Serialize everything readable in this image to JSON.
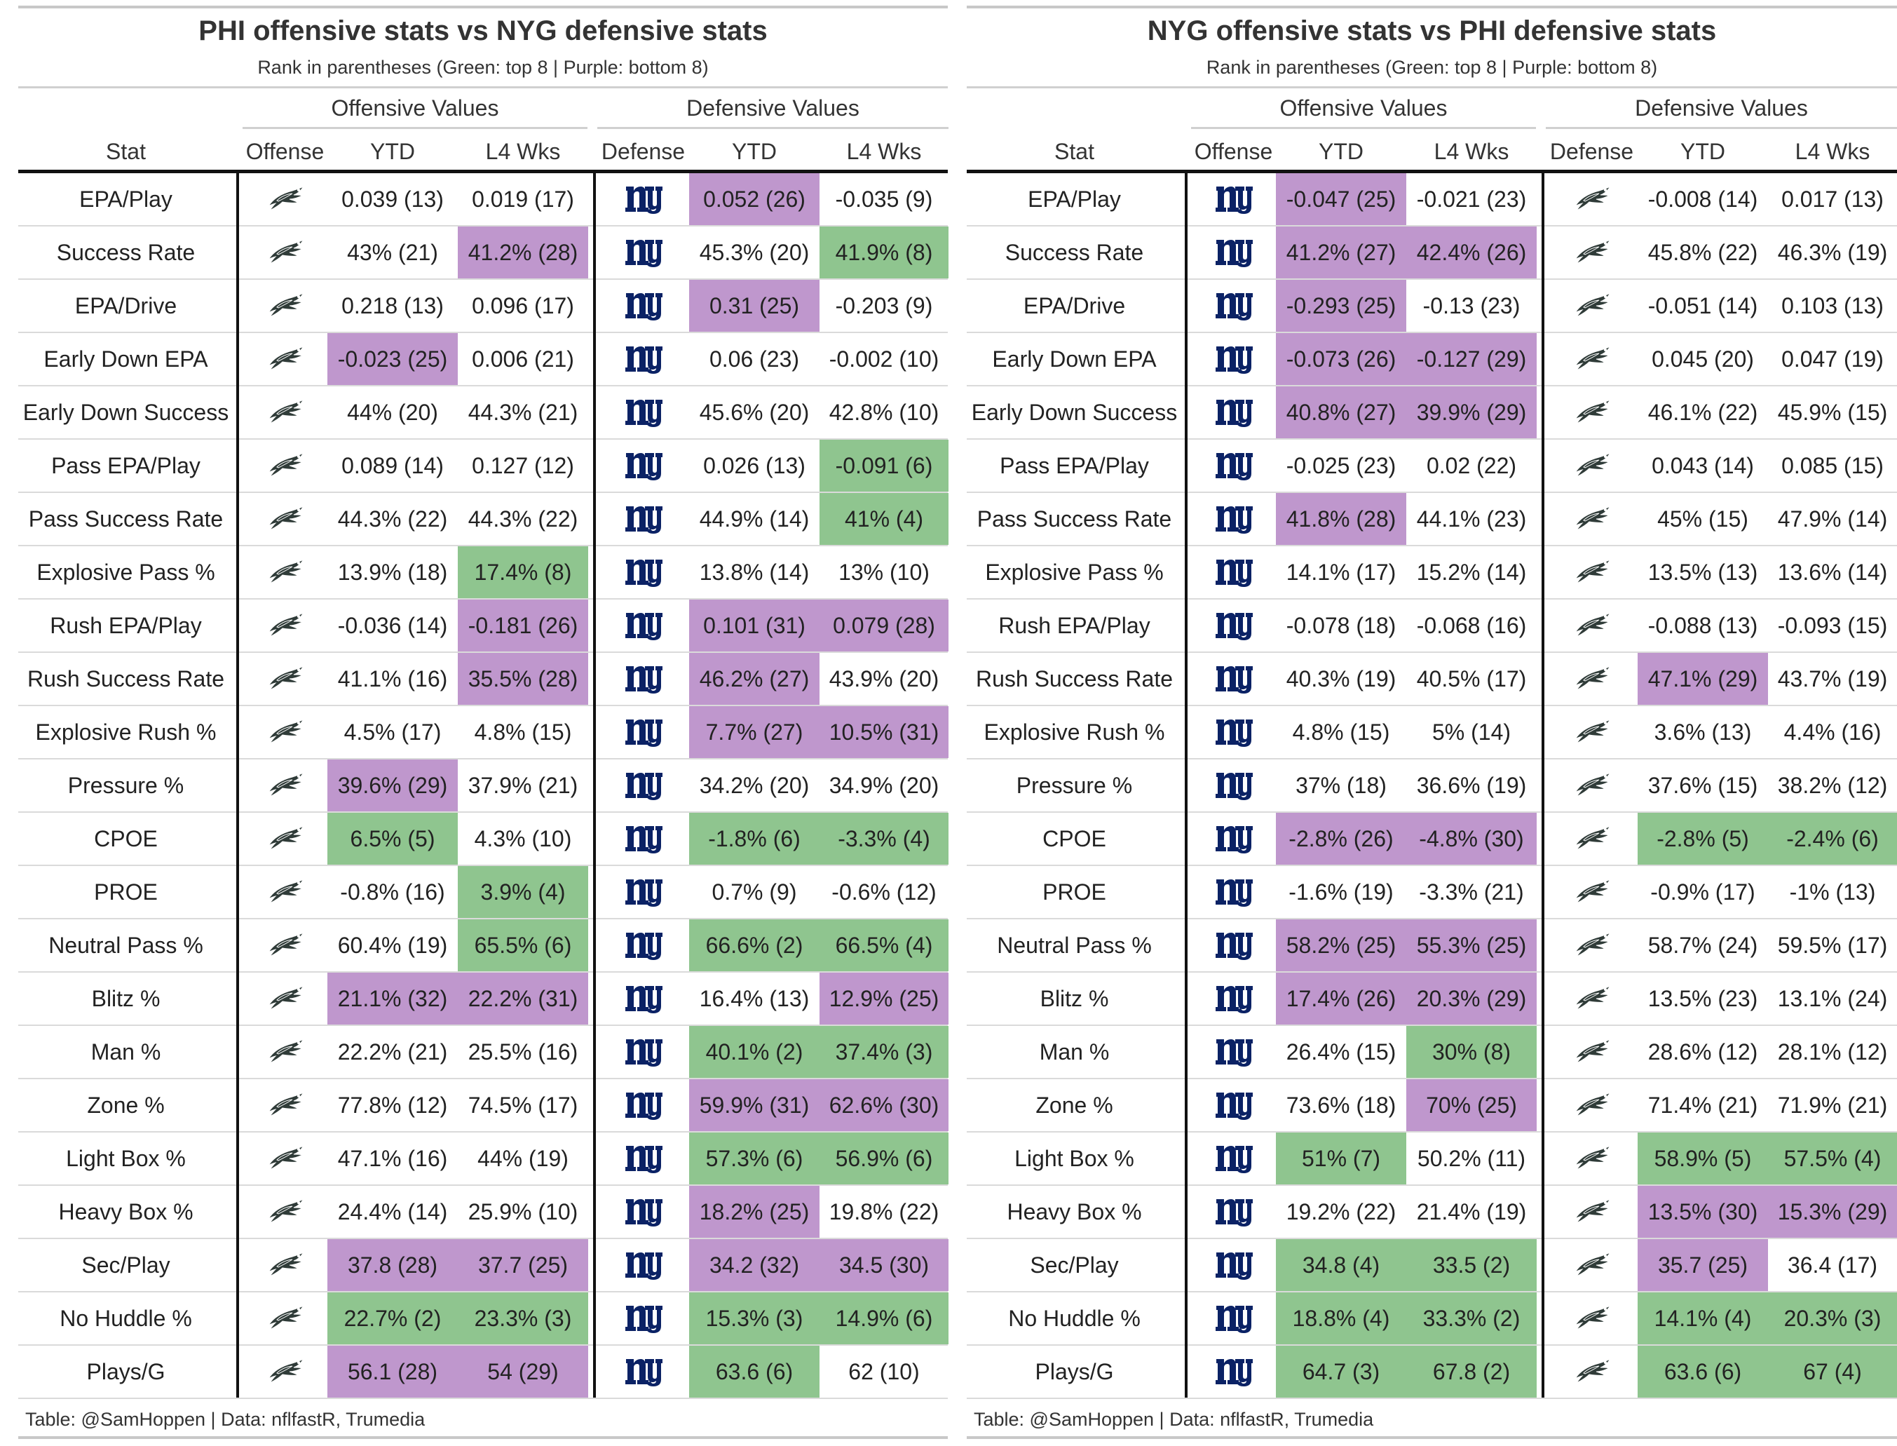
{
  "colors": {
    "green": "#8fc58f",
    "purple": "#bf97cd",
    "giants_blue": "#0b2265",
    "eagles": "#2f3b38"
  },
  "icons": {
    "phi": "eagles-logo-icon",
    "nyg": "giants-ny-logo-icon"
  },
  "chart_data": [
    {
      "type": "table",
      "title": "PHI offensive stats vs NYG defensive stats",
      "subtitle": "Rank in parentheses (Green: top 8 | Purple: bottom 8)",
      "spanners": [
        "Offensive Values",
        "Defensive Values"
      ],
      "columns": [
        "Stat",
        "Offense",
        "YTD",
        "L4 Wks",
        "Defense",
        "YTD",
        "L4 Wks"
      ],
      "offense_team": "phi",
      "defense_team": "nyg",
      "footer": "Table: @SamHoppen | Data: nflfastR, Trumedia",
      "rows": [
        {
          "stat": "EPA/Play",
          "o_ytd": "0.039 (13)",
          "o_l4": "0.019 (17)",
          "d_ytd": "0.052 (26)",
          "d_l4": "-0.035 (9)",
          "c": [
            "",
            "",
            "p",
            ""
          ]
        },
        {
          "stat": "Success Rate",
          "o_ytd": "43% (21)",
          "o_l4": "41.2% (28)",
          "d_ytd": "45.3% (20)",
          "d_l4": "41.9% (8)",
          "c": [
            "",
            "p",
            "",
            "g"
          ]
        },
        {
          "stat": "EPA/Drive",
          "o_ytd": "0.218 (13)",
          "o_l4": "0.096 (17)",
          "d_ytd": "0.31 (25)",
          "d_l4": "-0.203 (9)",
          "c": [
            "",
            "",
            "p",
            ""
          ]
        },
        {
          "stat": "Early Down EPA",
          "o_ytd": "-0.023 (25)",
          "o_l4": "0.006 (21)",
          "d_ytd": "0.06 (23)",
          "d_l4": "-0.002 (10)",
          "c": [
            "p",
            "",
            "",
            ""
          ]
        },
        {
          "stat": "Early Down Success",
          "o_ytd": "44% (20)",
          "o_l4": "44.3% (21)",
          "d_ytd": "45.6% (20)",
          "d_l4": "42.8% (10)",
          "c": [
            "",
            "",
            "",
            ""
          ]
        },
        {
          "stat": "Pass EPA/Play",
          "o_ytd": "0.089 (14)",
          "o_l4": "0.127 (12)",
          "d_ytd": "0.026 (13)",
          "d_l4": "-0.091 (6)",
          "c": [
            "",
            "",
            "",
            "g"
          ]
        },
        {
          "stat": "Pass Success Rate",
          "o_ytd": "44.3% (22)",
          "o_l4": "44.3% (22)",
          "d_ytd": "44.9% (14)",
          "d_l4": "41% (4)",
          "c": [
            "",
            "",
            "",
            "g"
          ]
        },
        {
          "stat": "Explosive Pass %",
          "o_ytd": "13.9% (18)",
          "o_l4": "17.4% (8)",
          "d_ytd": "13.8% (14)",
          "d_l4": "13% (10)",
          "c": [
            "",
            "g",
            "",
            ""
          ]
        },
        {
          "stat": "Rush EPA/Play",
          "o_ytd": "-0.036 (14)",
          "o_l4": "-0.181 (26)",
          "d_ytd": "0.101 (31)",
          "d_l4": "0.079 (28)",
          "c": [
            "",
            "p",
            "p",
            "p"
          ]
        },
        {
          "stat": "Rush Success Rate",
          "o_ytd": "41.1% (16)",
          "o_l4": "35.5% (28)",
          "d_ytd": "46.2% (27)",
          "d_l4": "43.9% (20)",
          "c": [
            "",
            "p",
            "p",
            ""
          ]
        },
        {
          "stat": "Explosive Rush %",
          "o_ytd": "4.5% (17)",
          "o_l4": "4.8% (15)",
          "d_ytd": "7.7% (27)",
          "d_l4": "10.5% (31)",
          "c": [
            "",
            "",
            "p",
            "p"
          ]
        },
        {
          "stat": "Pressure %",
          "o_ytd": "39.6% (29)",
          "o_l4": "37.9% (21)",
          "d_ytd": "34.2% (20)",
          "d_l4": "34.9% (20)",
          "c": [
            "p",
            "",
            "",
            ""
          ]
        },
        {
          "stat": "CPOE",
          "o_ytd": "6.5% (5)",
          "o_l4": "4.3% (10)",
          "d_ytd": "-1.8% (6)",
          "d_l4": "-3.3% (4)",
          "c": [
            "g",
            "",
            "g",
            "g"
          ]
        },
        {
          "stat": "PROE",
          "o_ytd": "-0.8% (16)",
          "o_l4": "3.9% (4)",
          "d_ytd": "0.7% (9)",
          "d_l4": "-0.6% (12)",
          "c": [
            "",
            "g",
            "",
            ""
          ]
        },
        {
          "stat": "Neutral Pass %",
          "o_ytd": "60.4% (19)",
          "o_l4": "65.5% (6)",
          "d_ytd": "66.6% (2)",
          "d_l4": "66.5% (4)",
          "c": [
            "",
            "g",
            "g",
            "g"
          ]
        },
        {
          "stat": "Blitz %",
          "o_ytd": "21.1% (32)",
          "o_l4": "22.2% (31)",
          "d_ytd": "16.4% (13)",
          "d_l4": "12.9% (25)",
          "c": [
            "p",
            "p",
            "",
            "p"
          ]
        },
        {
          "stat": "Man %",
          "o_ytd": "22.2% (21)",
          "o_l4": "25.5% (16)",
          "d_ytd": "40.1% (2)",
          "d_l4": "37.4% (3)",
          "c": [
            "",
            "",
            "g",
            "g"
          ]
        },
        {
          "stat": "Zone %",
          "o_ytd": "77.8% (12)",
          "o_l4": "74.5% (17)",
          "d_ytd": "59.9% (31)",
          "d_l4": "62.6% (30)",
          "c": [
            "",
            "",
            "p",
            "p"
          ]
        },
        {
          "stat": "Light Box %",
          "o_ytd": "47.1% (16)",
          "o_l4": "44% (19)",
          "d_ytd": "57.3% (6)",
          "d_l4": "56.9% (6)",
          "c": [
            "",
            "",
            "g",
            "g"
          ]
        },
        {
          "stat": "Heavy Box %",
          "o_ytd": "24.4% (14)",
          "o_l4": "25.9% (10)",
          "d_ytd": "18.2% (25)",
          "d_l4": "19.8% (22)",
          "c": [
            "",
            "",
            "p",
            ""
          ]
        },
        {
          "stat": "Sec/Play",
          "o_ytd": "37.8 (28)",
          "o_l4": "37.7 (25)",
          "d_ytd": "34.2 (32)",
          "d_l4": "34.5 (30)",
          "c": [
            "p",
            "p",
            "p",
            "p"
          ]
        },
        {
          "stat": "No Huddle %",
          "o_ytd": "22.7% (2)",
          "o_l4": "23.3% (3)",
          "d_ytd": "15.3% (3)",
          "d_l4": "14.9% (6)",
          "c": [
            "g",
            "g",
            "g",
            "g"
          ]
        },
        {
          "stat": "Plays/G",
          "o_ytd": "56.1 (28)",
          "o_l4": "54 (29)",
          "d_ytd": "63.6 (6)",
          "d_l4": "62 (10)",
          "c": [
            "p",
            "p",
            "g",
            ""
          ]
        }
      ]
    },
    {
      "type": "table",
      "title": "NYG offensive stats vs PHI defensive stats",
      "subtitle": "Rank in parentheses (Green: top 8 | Purple: bottom 8)",
      "spanners": [
        "Offensive Values",
        "Defensive Values"
      ],
      "columns": [
        "Stat",
        "Offense",
        "YTD",
        "L4 Wks",
        "Defense",
        "YTD",
        "L4 Wks"
      ],
      "offense_team": "nyg",
      "defense_team": "phi",
      "footer": "Table: @SamHoppen | Data: nflfastR, Trumedia",
      "rows": [
        {
          "stat": "EPA/Play",
          "o_ytd": "-0.047 (25)",
          "o_l4": "-0.021 (23)",
          "d_ytd": "-0.008 (14)",
          "d_l4": "0.017 (13)",
          "c": [
            "p",
            "",
            "",
            ""
          ]
        },
        {
          "stat": "Success Rate",
          "o_ytd": "41.2% (27)",
          "o_l4": "42.4% (26)",
          "d_ytd": "45.8% (22)",
          "d_l4": "46.3% (19)",
          "c": [
            "p",
            "p",
            "",
            ""
          ]
        },
        {
          "stat": "EPA/Drive",
          "o_ytd": "-0.293 (25)",
          "o_l4": "-0.13 (23)",
          "d_ytd": "-0.051 (14)",
          "d_l4": "0.103 (13)",
          "c": [
            "p",
            "",
            "",
            ""
          ]
        },
        {
          "stat": "Early Down EPA",
          "o_ytd": "-0.073 (26)",
          "o_l4": "-0.127 (29)",
          "d_ytd": "0.045 (20)",
          "d_l4": "0.047 (19)",
          "c": [
            "p",
            "p",
            "",
            ""
          ]
        },
        {
          "stat": "Early Down Success",
          "o_ytd": "40.8% (27)",
          "o_l4": "39.9% (29)",
          "d_ytd": "46.1% (22)",
          "d_l4": "45.9% (15)",
          "c": [
            "p",
            "p",
            "",
            ""
          ]
        },
        {
          "stat": "Pass EPA/Play",
          "o_ytd": "-0.025 (23)",
          "o_l4": "0.02 (22)",
          "d_ytd": "0.043 (14)",
          "d_l4": "0.085 (15)",
          "c": [
            "",
            "",
            "",
            ""
          ]
        },
        {
          "stat": "Pass Success Rate",
          "o_ytd": "41.8% (28)",
          "o_l4": "44.1% (23)",
          "d_ytd": "45% (15)",
          "d_l4": "47.9% (14)",
          "c": [
            "p",
            "",
            "",
            ""
          ]
        },
        {
          "stat": "Explosive Pass %",
          "o_ytd": "14.1% (17)",
          "o_l4": "15.2% (14)",
          "d_ytd": "13.5% (13)",
          "d_l4": "13.6% (14)",
          "c": [
            "",
            "",
            "",
            ""
          ]
        },
        {
          "stat": "Rush EPA/Play",
          "o_ytd": "-0.078 (18)",
          "o_l4": "-0.068 (16)",
          "d_ytd": "-0.088 (13)",
          "d_l4": "-0.093 (15)",
          "c": [
            "",
            "",
            "",
            ""
          ]
        },
        {
          "stat": "Rush Success Rate",
          "o_ytd": "40.3% (19)",
          "o_l4": "40.5% (17)",
          "d_ytd": "47.1% (29)",
          "d_l4": "43.7% (19)",
          "c": [
            "",
            "",
            "p",
            ""
          ]
        },
        {
          "stat": "Explosive Rush %",
          "o_ytd": "4.8% (15)",
          "o_l4": "5% (14)",
          "d_ytd": "3.6% (13)",
          "d_l4": "4.4% (16)",
          "c": [
            "",
            "",
            "",
            ""
          ]
        },
        {
          "stat": "Pressure %",
          "o_ytd": "37% (18)",
          "o_l4": "36.6% (19)",
          "d_ytd": "37.6% (15)",
          "d_l4": "38.2% (12)",
          "c": [
            "",
            "",
            "",
            ""
          ]
        },
        {
          "stat": "CPOE",
          "o_ytd": "-2.8% (26)",
          "o_l4": "-4.8% (30)",
          "d_ytd": "-2.8% (5)",
          "d_l4": "-2.4% (6)",
          "c": [
            "p",
            "p",
            "g",
            "g"
          ]
        },
        {
          "stat": "PROE",
          "o_ytd": "-1.6% (19)",
          "o_l4": "-3.3% (21)",
          "d_ytd": "-0.9% (17)",
          "d_l4": "-1% (13)",
          "c": [
            "",
            "",
            "",
            ""
          ]
        },
        {
          "stat": "Neutral Pass %",
          "o_ytd": "58.2% (25)",
          "o_l4": "55.3% (25)",
          "d_ytd": "58.7% (24)",
          "d_l4": "59.5% (17)",
          "c": [
            "p",
            "p",
            "",
            ""
          ]
        },
        {
          "stat": "Blitz %",
          "o_ytd": "17.4% (26)",
          "o_l4": "20.3% (29)",
          "d_ytd": "13.5% (23)",
          "d_l4": "13.1% (24)",
          "c": [
            "p",
            "p",
            "",
            ""
          ]
        },
        {
          "stat": "Man %",
          "o_ytd": "26.4% (15)",
          "o_l4": "30% (8)",
          "d_ytd": "28.6% (12)",
          "d_l4": "28.1% (12)",
          "c": [
            "",
            "g",
            "",
            ""
          ]
        },
        {
          "stat": "Zone %",
          "o_ytd": "73.6% (18)",
          "o_l4": "70% (25)",
          "d_ytd": "71.4% (21)",
          "d_l4": "71.9% (21)",
          "c": [
            "",
            "p",
            "",
            ""
          ]
        },
        {
          "stat": "Light Box %",
          "o_ytd": "51% (7)",
          "o_l4": "50.2% (11)",
          "d_ytd": "58.9% (5)",
          "d_l4": "57.5% (4)",
          "c": [
            "g",
            "",
            "g",
            "g"
          ]
        },
        {
          "stat": "Heavy Box %",
          "o_ytd": "19.2% (22)",
          "o_l4": "21.4% (19)",
          "d_ytd": "13.5% (30)",
          "d_l4": "15.3% (29)",
          "c": [
            "",
            "",
            "p",
            "p"
          ]
        },
        {
          "stat": "Sec/Play",
          "o_ytd": "34.8 (4)",
          "o_l4": "33.5 (2)",
          "d_ytd": "35.7 (25)",
          "d_l4": "36.4 (17)",
          "c": [
            "g",
            "g",
            "p",
            ""
          ]
        },
        {
          "stat": "No Huddle %",
          "o_ytd": "18.8% (4)",
          "o_l4": "33.3% (2)",
          "d_ytd": "14.1% (4)",
          "d_l4": "20.3% (3)",
          "c": [
            "g",
            "g",
            "g",
            "g"
          ]
        },
        {
          "stat": "Plays/G",
          "o_ytd": "64.7 (3)",
          "o_l4": "67.8 (2)",
          "d_ytd": "63.6 (6)",
          "d_l4": "67 (4)",
          "c": [
            "g",
            "g",
            "g",
            "g"
          ]
        }
      ]
    }
  ]
}
